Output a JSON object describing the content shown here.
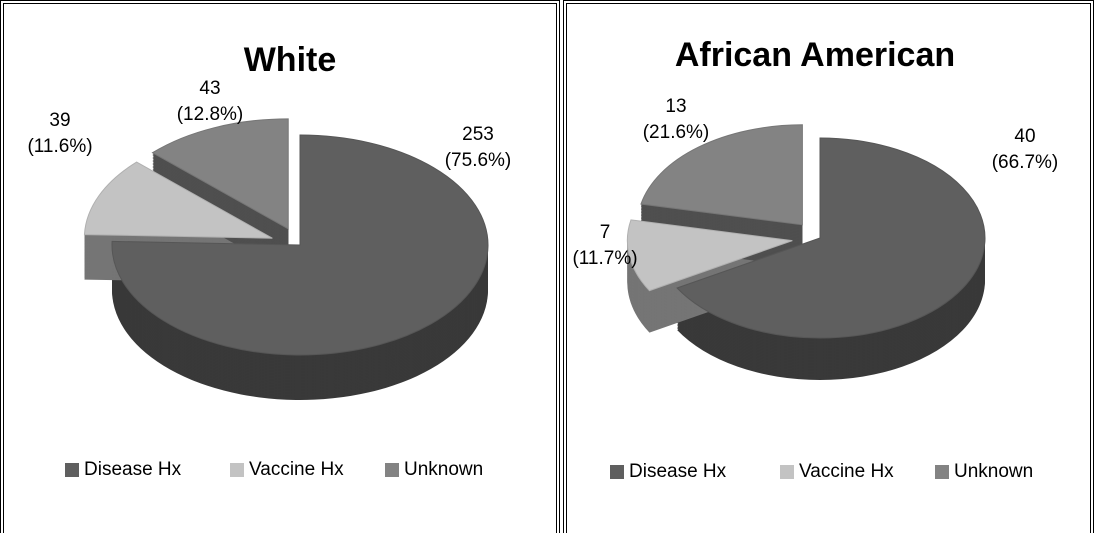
{
  "chart_data": [
    {
      "type": "pie",
      "title": "White",
      "categories": [
        "Disease Hx",
        "Vaccine Hx",
        "Unknown"
      ],
      "values": [
        253,
        39,
        43
      ],
      "value_labels": [
        "253\n(75.6%)",
        "39\n(11.6%)",
        "43\n(12.8%)"
      ],
      "colors": [
        "#5f5f5f",
        "#c3c3c3",
        "#838383"
      ],
      "legend": "bottom"
    },
    {
      "type": "pie",
      "title": "African American",
      "categories": [
        "Disease Hx",
        "Vaccine Hx",
        "Unknown"
      ],
      "values": [
        40,
        7,
        13
      ],
      "value_labels": [
        "40\n(66.7%)",
        "7\n(11.7%)",
        "13\n(21.6%)"
      ],
      "colors": [
        "#5f5f5f",
        "#c3c3c3",
        "#838383"
      ],
      "legend": "bottom"
    }
  ]
}
